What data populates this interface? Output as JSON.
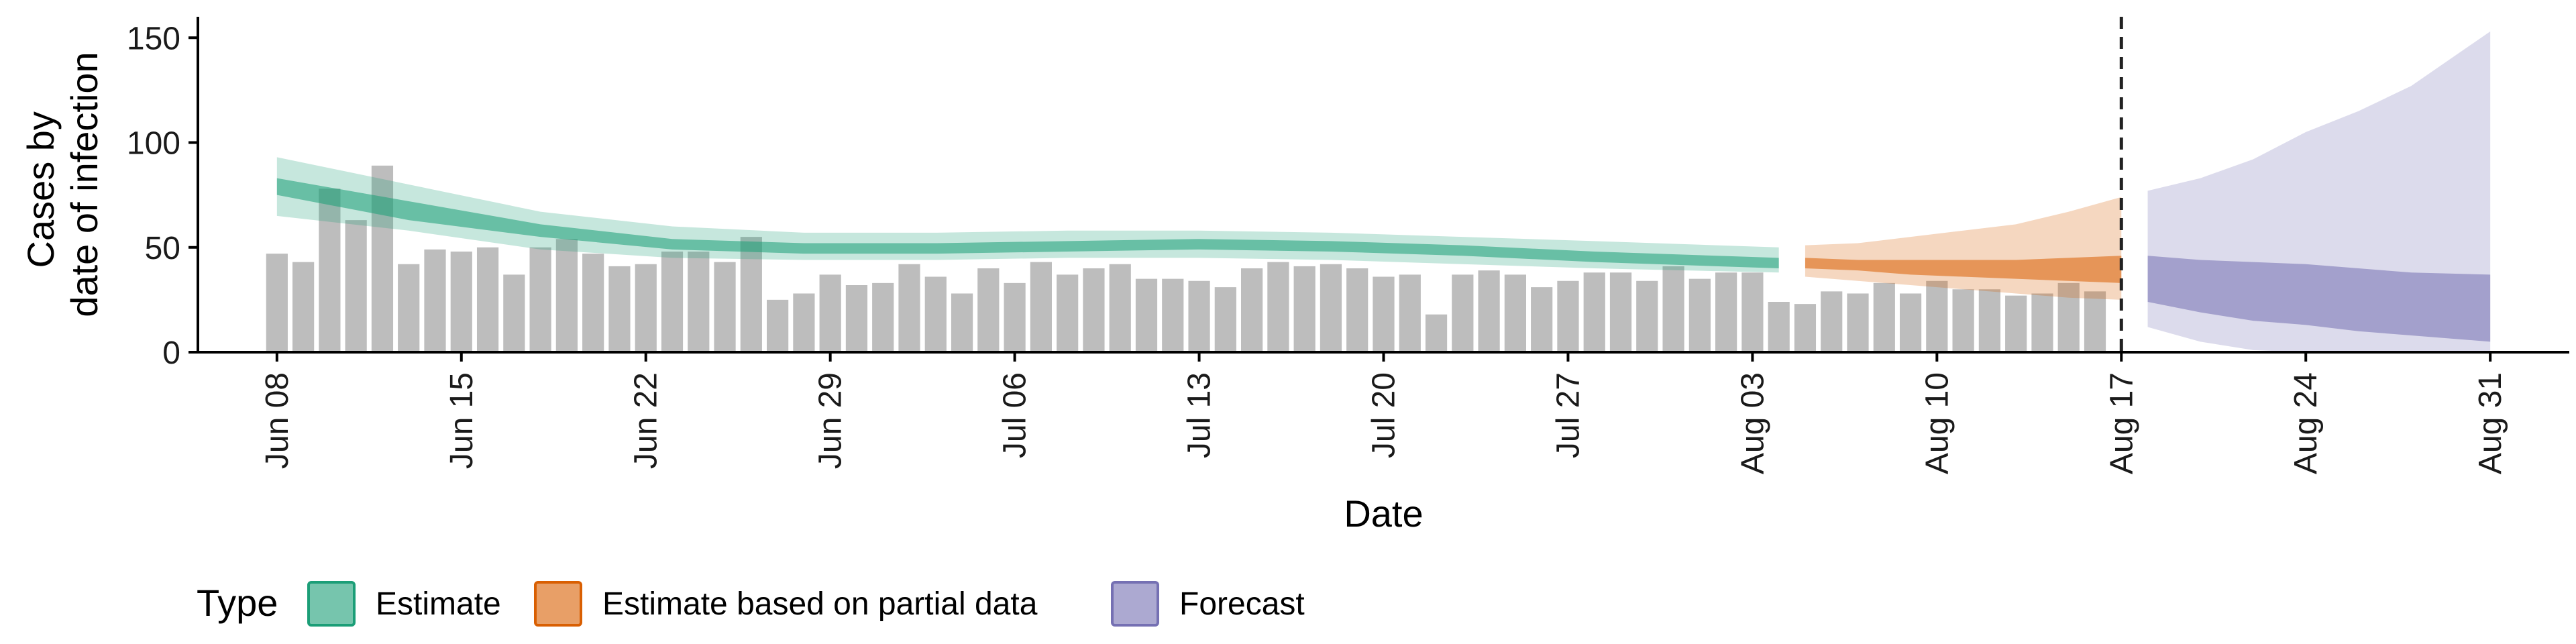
{
  "chart_data": {
    "type": "bar+ribbon",
    "xlabel": "Date",
    "ylabel_lines": [
      "Cases by",
      "date of infection"
    ],
    "ylim": [
      0,
      160
    ],
    "yticks": [
      0,
      50,
      100,
      150
    ],
    "xlim": [
      "2020-06-05",
      "2020-09-03"
    ],
    "xticks": [
      {
        "date": "2020-06-08",
        "label": "Jun 08"
      },
      {
        "date": "2020-06-15",
        "label": "Jun 15"
      },
      {
        "date": "2020-06-22",
        "label": "Jun 22"
      },
      {
        "date": "2020-06-29",
        "label": "Jun 29"
      },
      {
        "date": "2020-07-06",
        "label": "Jul 06"
      },
      {
        "date": "2020-07-13",
        "label": "Jul 13"
      },
      {
        "date": "2020-07-20",
        "label": "Jul 20"
      },
      {
        "date": "2020-07-27",
        "label": "Jul 27"
      },
      {
        "date": "2020-08-03",
        "label": "Aug 03"
      },
      {
        "date": "2020-08-10",
        "label": "Aug 10"
      },
      {
        "date": "2020-08-17",
        "label": "Aug 17"
      },
      {
        "date": "2020-08-24",
        "label": "Aug 24"
      },
      {
        "date": "2020-08-31",
        "label": "Aug 31"
      }
    ],
    "bars": {
      "start_date": "2020-06-08",
      "color": "#bdbdbd",
      "values": [
        47,
        43,
        78,
        63,
        89,
        42,
        49,
        48,
        50,
        37,
        50,
        54,
        47,
        41,
        42,
        48,
        48,
        43,
        55,
        25,
        28,
        37,
        32,
        33,
        42,
        36,
        28,
        40,
        33,
        43,
        37,
        40,
        42,
        35,
        35,
        34,
        31,
        40,
        43,
        41,
        42,
        40,
        36,
        37,
        18,
        37,
        39,
        37,
        31,
        34,
        38,
        38,
        34,
        41,
        35,
        38,
        38,
        24,
        23,
        29,
        28,
        33,
        28,
        34,
        30,
        30,
        27,
        28,
        33,
        29
      ]
    },
    "forecast_line_date": "2020-08-17",
    "series": [
      {
        "name": "Estimate",
        "color": "#1b9e77",
        "dates": [
          "2020-06-08",
          "2020-06-13",
          "2020-06-18",
          "2020-06-23",
          "2020-06-28",
          "2020-07-03",
          "2020-07-08",
          "2020-07-13",
          "2020-07-18",
          "2020-07-23",
          "2020-07-28",
          "2020-08-04"
        ],
        "outer_lower": [
          65,
          58,
          49,
          45,
          44,
          44,
          45,
          45,
          44,
          42,
          40,
          38
        ],
        "outer_upper": [
          93,
          80,
          67,
          60,
          57,
          57,
          58,
          58,
          57,
          55,
          53,
          50
        ],
        "inner_lower": [
          75,
          63,
          55,
          49,
          47,
          47,
          48,
          49,
          48,
          46,
          43,
          40
        ],
        "inner_upper": [
          83,
          72,
          61,
          54,
          52,
          52,
          53,
          54,
          53,
          51,
          48,
          45
        ]
      },
      {
        "name": "Estimate based on partial data",
        "color": "#d95f02",
        "dates": [
          "2020-08-05",
          "2020-08-07",
          "2020-08-09",
          "2020-08-11",
          "2020-08-13",
          "2020-08-15",
          "2020-08-17"
        ],
        "outer_lower": [
          36,
          34,
          32,
          30,
          28,
          26,
          25
        ],
        "outer_upper": [
          51,
          52,
          55,
          58,
          61,
          67,
          74
        ],
        "inner_lower": [
          40,
          39,
          37,
          36,
          35,
          34,
          33
        ],
        "inner_upper": [
          45,
          44,
          44,
          44,
          44,
          45,
          46
        ]
      },
      {
        "name": "Forecast",
        "color": "#7570b3",
        "dates": [
          "2020-08-18",
          "2020-08-20",
          "2020-08-22",
          "2020-08-24",
          "2020-08-26",
          "2020-08-28",
          "2020-08-31"
        ],
        "outer_lower": [
          12,
          5,
          1,
          0,
          0,
          0,
          0
        ],
        "outer_upper": [
          77,
          83,
          92,
          105,
          115,
          127,
          153
        ],
        "inner_lower": [
          24,
          19,
          15,
          13,
          10,
          8,
          5
        ],
        "inner_upper": [
          46,
          44,
          43,
          42,
          40,
          38,
          37
        ]
      }
    ],
    "legend": {
      "title": "Type",
      "position": "bottom-left",
      "items": [
        {
          "label": "Estimate",
          "color": "#1b9e77"
        },
        {
          "label": "Estimate based on partial data",
          "color": "#d95f02"
        },
        {
          "label": "Forecast",
          "color": "#7570b3"
        }
      ]
    }
  }
}
